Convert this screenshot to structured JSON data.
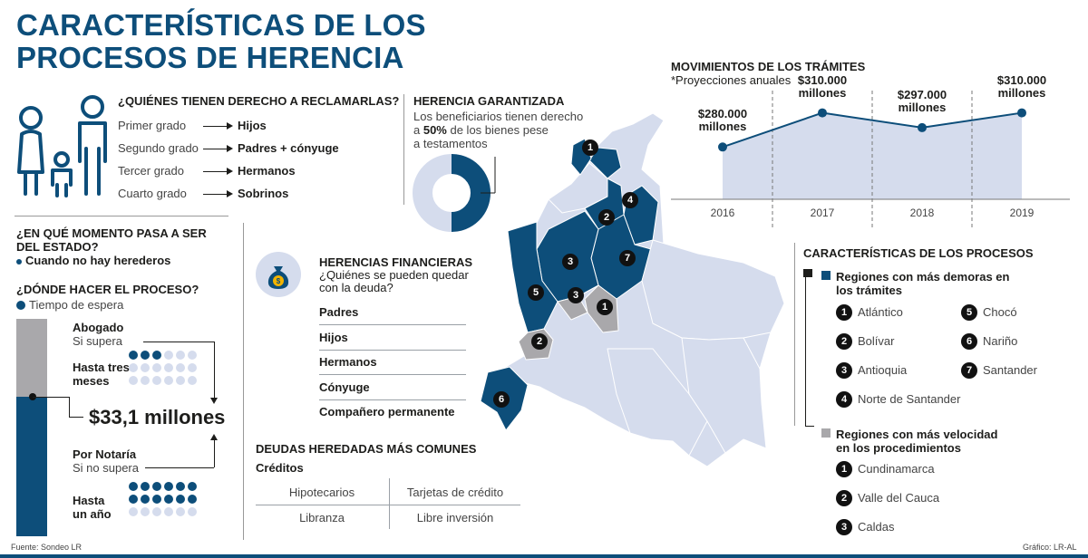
{
  "title": {
    "line1": "CARACTERÍSTICAS DE LOS",
    "line2": "PROCESOS DE HERENCIA"
  },
  "derecho": {
    "heading": "¿QUIÉNES TIENEN DERECHO A RECLAMARLAS?",
    "rows": [
      {
        "grado": "Primer grado",
        "quien": "Hijos"
      },
      {
        "grado": "Segundo grado",
        "quien": "Padres + cónyuge"
      },
      {
        "grado": "Tercer grado",
        "quien": "Hermanos"
      },
      {
        "grado": "Cuarto grado",
        "quien": "Sobrinos"
      }
    ]
  },
  "garantizada": {
    "heading": "HERENCIA GARANTIZADA",
    "text1": "Los beneficiarios tienen derecho",
    "text2a": "a ",
    "percent": "50%",
    "text2b": " de los bienes pese",
    "text3": "a testamentos",
    "share": 0.5
  },
  "estado": {
    "heading1": "¿EN QUÉ MOMENTO PASA A SER",
    "heading2": "DEL ESTADO?",
    "answer": "Cuando no hay herederos"
  },
  "donde": {
    "heading": "¿DÓNDE HACER EL PROCESO?",
    "legend": "Tiempo de espera",
    "abogado": {
      "title": "Abogado",
      "cond": "Si supera",
      "time1": "Hasta tres",
      "time2": "meses",
      "filled": 3,
      "total": 18
    },
    "amount": "$33,1 millones",
    "notaria": {
      "title": "Por Notaría",
      "cond": "Si no supera",
      "time1": "Hasta",
      "time2": "un año",
      "filled": 12,
      "total": 18
    }
  },
  "financieras": {
    "heading": "HERENCIAS FINANCIERAS",
    "sub1": "¿Quiénes se pueden quedar",
    "sub2": "con la deuda?",
    "items": [
      "Padres",
      "Hijos",
      "Hermanos",
      "Cónyuge",
      "Compañero permanente"
    ]
  },
  "deudas": {
    "heading": "DEUDAS HEREDADAS MÁS COMUNES",
    "sub": "Créditos",
    "items": [
      "Hipotecarios",
      "Tarjetas de crédito",
      "Libranza",
      "Libre inversión"
    ]
  },
  "movimientos": {
    "heading": "MOVIMIENTOS DE LOS TRÁMITES",
    "sub": "*Proyecciones anuales",
    "unit": "millones",
    "points": [
      {
        "year": "2016",
        "label": "$280.000",
        "value": 280000
      },
      {
        "year": "2017",
        "label": "$310.000",
        "value": 310000
      },
      {
        "year": "2018",
        "label": "$297.000",
        "value": 297000
      },
      {
        "year": "2019",
        "label": "$310.000",
        "value": 310000
      }
    ]
  },
  "procesos": {
    "heading": "CARACTERÍSTICAS DE LOS PROCESOS",
    "demora": {
      "title1": "Regiones con más demoras en",
      "title2": "los trámites",
      "items": [
        {
          "n": "1",
          "name": "Atlántico"
        },
        {
          "n": "2",
          "name": "Bolívar"
        },
        {
          "n": "3",
          "name": "Antioquia"
        },
        {
          "n": "4",
          "name": "Norte de Santander"
        },
        {
          "n": "5",
          "name": "Chocó"
        },
        {
          "n": "6",
          "name": "Nariño"
        },
        {
          "n": "7",
          "name": "Santander"
        }
      ]
    },
    "velocidad": {
      "title1": "Regiones con más velocidad",
      "title2": "en los procedimientos",
      "items": [
        {
          "n": "1",
          "name": "Cundinamarca"
        },
        {
          "n": "2",
          "name": "Valle del Cauca"
        },
        {
          "n": "3",
          "name": "Caldas"
        }
      ]
    }
  },
  "map_badges": {
    "navy": [
      "1",
      "2",
      "4",
      "3",
      "7",
      "5",
      "6"
    ],
    "gray": [
      "3",
      "1",
      "2"
    ]
  },
  "footer": {
    "source": "Fuente: Sondeo LR",
    "credit": "Gráfico: LR-AL"
  },
  "colors": {
    "navy": "#0d4e7a",
    "light": "#d5dced",
    "gray": "#a9a8ab",
    "map": "#d5dced"
  }
}
